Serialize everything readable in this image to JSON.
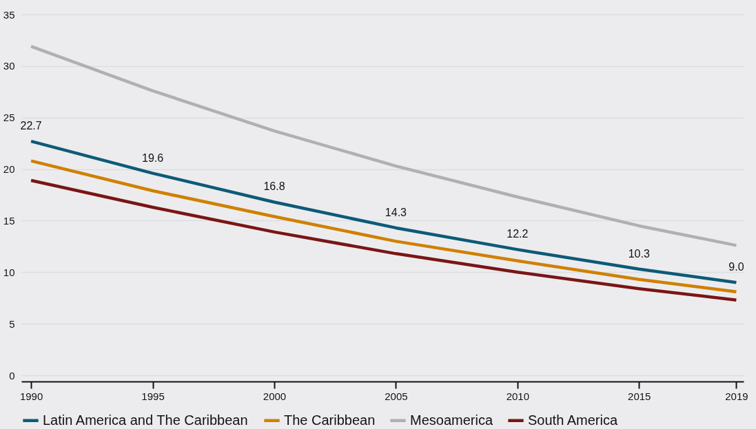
{
  "chart_data": {
    "type": "line",
    "xlim": [
      1989.6,
      2019.3
    ],
    "xticks": [
      1990,
      1995,
      2000,
      2005,
      2010,
      2015,
      2019
    ],
    "ylim": [
      -0.6,
      35
    ],
    "yticks": [
      0,
      5,
      10,
      15,
      20,
      25,
      30,
      35
    ],
    "grid": "y",
    "legend": "bottom",
    "marker": "none",
    "line_style": "solid",
    "series": [
      {
        "name": "Latin America and The Caribbean",
        "color": "#0d5a78",
        "x": [
          1990,
          1995,
          2000,
          2005,
          2010,
          2015,
          2019
        ],
        "values": [
          22.7,
          19.6,
          16.8,
          14.3,
          12.2,
          10.3,
          9.0
        ],
        "value_labels": [
          "22.7",
          "19.6",
          "16.8",
          "14.3",
          "12.2",
          "10.3",
          "9.0"
        ]
      },
      {
        "name": "The Caribbean",
        "color": "#d08000",
        "x": [
          1990,
          1995,
          2000,
          2005,
          2010,
          2015,
          2019
        ],
        "values": [
          20.8,
          17.9,
          15.4,
          13.0,
          11.1,
          9.3,
          8.1
        ]
      },
      {
        "name": "Mesoamerica",
        "color": "#b0b0b0",
        "x": [
          1990,
          1995,
          2000,
          2005,
          2010,
          2015,
          2019
        ],
        "values": [
          31.9,
          27.6,
          23.7,
          20.3,
          17.3,
          14.5,
          12.6
        ]
      },
      {
        "name": "South America",
        "color": "#7a1515",
        "x": [
          1990,
          1995,
          2000,
          2005,
          2010,
          2015,
          2019
        ],
        "values": [
          18.9,
          16.3,
          13.9,
          11.8,
          10.0,
          8.4,
          7.3
        ]
      }
    ]
  }
}
